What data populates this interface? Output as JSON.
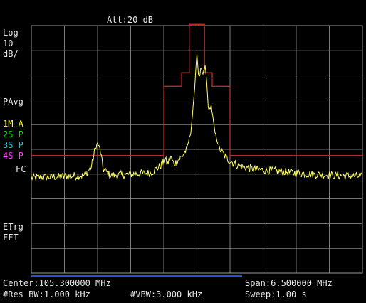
{
  "header": {
    "attenuation": "Att:20 dB"
  },
  "left_panel": {
    "scale_type": "Log",
    "scale_value": "10",
    "scale_unit": "dB/",
    "avg_mode": "PAvg",
    "traces": [
      {
        "label": "1M A",
        "color": "#ffff00"
      },
      {
        "label": "2S P",
        "color": "#00e000"
      },
      {
        "label": "3S P",
        "color": "#00dcdc"
      },
      {
        "label": "4S P",
        "color": "#ff40ff"
      }
    ],
    "fc_label": "FC",
    "trigger": "ETrg",
    "fft": "FFT"
  },
  "footer": {
    "center": "Center:105.300000 MHz",
    "span": "Span:6.500000 MHz",
    "rbw": "#Res BW:1.000 kHz",
    "vbw": "#VBW:3.000 kHz",
    "sweep": "Sweep:1.00 s"
  },
  "colors": {
    "grid": "#9a9a9a",
    "trace": "#ffff66",
    "mask": "#c02828",
    "scroll": "#2b4fd8"
  },
  "chart_data": {
    "type": "line",
    "x_range": [
      102.05,
      108.55
    ],
    "x_unit": "MHz",
    "y_scale": "log",
    "y_per_div": 10,
    "divisions": {
      "x": 10,
      "y": 10
    },
    "trace": [
      {
        "x": 102.05,
        "y": -81.5
      },
      {
        "x": 102.6,
        "y": -81
      },
      {
        "x": 103.1,
        "y": -80.5
      },
      {
        "x": 103.23,
        "y": -77
      },
      {
        "x": 103.3,
        "y": -70
      },
      {
        "x": 103.35,
        "y": -67.5
      },
      {
        "x": 103.4,
        "y": -70
      },
      {
        "x": 103.46,
        "y": -78
      },
      {
        "x": 103.6,
        "y": -80.5
      },
      {
        "x": 104.4,
        "y": -79.5
      },
      {
        "x": 104.62,
        "y": -76
      },
      {
        "x": 104.68,
        "y": -74
      },
      {
        "x": 104.72,
        "y": -76
      },
      {
        "x": 104.78,
        "y": -73
      },
      {
        "x": 104.85,
        "y": -76
      },
      {
        "x": 104.95,
        "y": -74
      },
      {
        "x": 105.0,
        "y": -73
      },
      {
        "x": 105.1,
        "y": -70
      },
      {
        "x": 105.18,
        "y": -63
      },
      {
        "x": 105.24,
        "y": -50
      },
      {
        "x": 105.28,
        "y": -37
      },
      {
        "x": 105.3,
        "y": -31
      },
      {
        "x": 105.32,
        "y": -38
      },
      {
        "x": 105.35,
        "y": -42
      },
      {
        "x": 105.38,
        "y": -37
      },
      {
        "x": 105.42,
        "y": -40
      },
      {
        "x": 105.46,
        "y": -36
      },
      {
        "x": 105.49,
        "y": -42
      },
      {
        "x": 105.53,
        "y": -55
      },
      {
        "x": 105.58,
        "y": -52
      },
      {
        "x": 105.65,
        "y": -63
      },
      {
        "x": 105.75,
        "y": -70
      },
      {
        "x": 105.9,
        "y": -74
      },
      {
        "x": 106.1,
        "y": -76.5
      },
      {
        "x": 106.4,
        "y": -78
      },
      {
        "x": 107.0,
        "y": -79
      },
      {
        "x": 107.5,
        "y": -80
      },
      {
        "x": 108.0,
        "y": -80.5
      },
      {
        "x": 108.55,
        "y": -81
      }
    ],
    "mask": [
      {
        "x": 102.05,
        "y": -72.5
      },
      {
        "x": 104.65,
        "y": -72.5
      },
      {
        "x": 104.65,
        "y": -44.5
      },
      {
        "x": 105.0,
        "y": -44.5
      },
      {
        "x": 105.0,
        "y": -39
      },
      {
        "x": 105.15,
        "y": -39
      },
      {
        "x": 105.15,
        "y": -19.5
      },
      {
        "x": 105.45,
        "y": -19.5
      },
      {
        "x": 105.45,
        "y": -39
      },
      {
        "x": 105.6,
        "y": -39
      },
      {
        "x": 105.6,
        "y": -44.5
      },
      {
        "x": 105.95,
        "y": -44.5
      },
      {
        "x": 105.95,
        "y": -72.5
      },
      {
        "x": 108.55,
        "y": -72.5
      }
    ],
    "y_top": -20
  }
}
